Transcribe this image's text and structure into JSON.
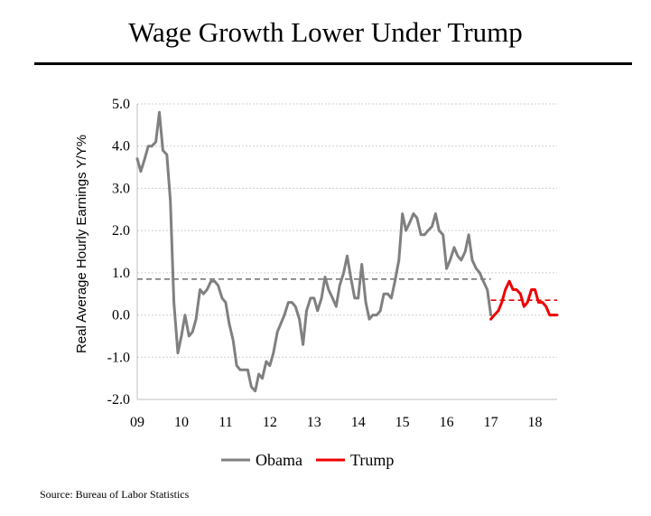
{
  "chart_data": {
    "type": "line",
    "title": "Wage Growth Lower Under Trump",
    "ylabel": "Real Average Hourly Earnings Y/Y%",
    "xlabel": "",
    "ylim": [
      -2.0,
      5.0
    ],
    "xlim": [
      2009,
      2018.5
    ],
    "yticks": [
      5.0,
      4.0,
      3.0,
      2.0,
      1.0,
      0.0,
      -1.0,
      -2.0
    ],
    "ytick_labels": [
      "5.0",
      "4.0",
      "3.0",
      "2.0",
      "1.0",
      "0.0",
      "-1.0",
      "-2.0"
    ],
    "xticks": [
      2009,
      2010,
      2011,
      2012,
      2013,
      2014,
      2015,
      2016,
      2017,
      2018
    ],
    "xtick_labels": [
      "09",
      "10",
      "11",
      "12",
      "13",
      "14",
      "15",
      "16",
      "17",
      "18"
    ],
    "grid": true,
    "legend_position": "bottom-center",
    "series": [
      {
        "name": "Obama",
        "color": "#808080",
        "x": [
          2009.0,
          2009.08,
          2009.17,
          2009.25,
          2009.33,
          2009.42,
          2009.5,
          2009.58,
          2009.67,
          2009.75,
          2009.83,
          2009.92,
          2010.0,
          2010.08,
          2010.17,
          2010.25,
          2010.33,
          2010.42,
          2010.5,
          2010.58,
          2010.67,
          2010.75,
          2010.83,
          2010.92,
          2011.0,
          2011.08,
          2011.17,
          2011.25,
          2011.33,
          2011.42,
          2011.5,
          2011.58,
          2011.67,
          2011.75,
          2011.83,
          2011.92,
          2012.0,
          2012.08,
          2012.17,
          2012.25,
          2012.33,
          2012.42,
          2012.5,
          2012.58,
          2012.67,
          2012.75,
          2012.83,
          2012.92,
          2013.0,
          2013.08,
          2013.17,
          2013.25,
          2013.33,
          2013.42,
          2013.5,
          2013.58,
          2013.67,
          2013.75,
          2013.83,
          2013.92,
          2014.0,
          2014.08,
          2014.17,
          2014.25,
          2014.33,
          2014.42,
          2014.5,
          2014.58,
          2014.67,
          2014.75,
          2014.83,
          2014.92,
          2015.0,
          2015.08,
          2015.17,
          2015.25,
          2015.33,
          2015.42,
          2015.5,
          2015.58,
          2015.67,
          2015.75,
          2015.83,
          2015.92,
          2016.0,
          2016.08,
          2016.17,
          2016.25,
          2016.33,
          2016.42,
          2016.5,
          2016.58,
          2016.67,
          2016.75,
          2016.83,
          2016.92,
          2017.0
        ],
        "values": [
          3.7,
          3.4,
          3.7,
          4.0,
          4.0,
          4.1,
          4.8,
          3.9,
          3.8,
          2.7,
          0.3,
          -0.9,
          -0.5,
          0.0,
          -0.5,
          -0.4,
          -0.1,
          0.6,
          0.5,
          0.6,
          0.8,
          0.8,
          0.7,
          0.4,
          0.3,
          -0.2,
          -0.6,
          -1.2,
          -1.3,
          -1.3,
          -1.3,
          -1.7,
          -1.8,
          -1.4,
          -1.5,
          -1.1,
          -1.2,
          -0.9,
          -0.4,
          -0.2,
          0.0,
          0.3,
          0.3,
          0.2,
          -0.1,
          -0.7,
          0.1,
          0.4,
          0.4,
          0.1,
          0.4,
          0.9,
          0.6,
          0.4,
          0.2,
          0.7,
          1.0,
          1.4,
          0.9,
          0.4,
          0.4,
          1.2,
          0.3,
          -0.1,
          0.0,
          0.0,
          0.1,
          0.5,
          0.5,
          0.4,
          0.8,
          1.3,
          2.4,
          2.0,
          2.2,
          2.4,
          2.3,
          1.9,
          1.9,
          2.0,
          2.1,
          2.4,
          2.0,
          1.9,
          1.1,
          1.3,
          1.6,
          1.4,
          1.3,
          1.5,
          1.9,
          1.3,
          1.1,
          1.0,
          0.8,
          0.6,
          0.0
        ],
        "average": 0.85
      },
      {
        "name": "Trump",
        "color": "#ee0000",
        "x": [
          2017.0,
          2017.08,
          2017.17,
          2017.25,
          2017.33,
          2017.42,
          2017.5,
          2017.58,
          2017.67,
          2017.75,
          2017.83,
          2017.92,
          2018.0,
          2018.08,
          2018.17,
          2018.25,
          2018.33,
          2018.42,
          2018.5
        ],
        "values": [
          -0.1,
          0.0,
          0.1,
          0.3,
          0.6,
          0.8,
          0.6,
          0.6,
          0.5,
          0.2,
          0.3,
          0.6,
          0.6,
          0.3,
          0.3,
          0.2,
          0.0,
          0.0,
          0.0
        ],
        "average": 0.35
      }
    ],
    "source": "Source: Bureau of Labor Statistics"
  }
}
